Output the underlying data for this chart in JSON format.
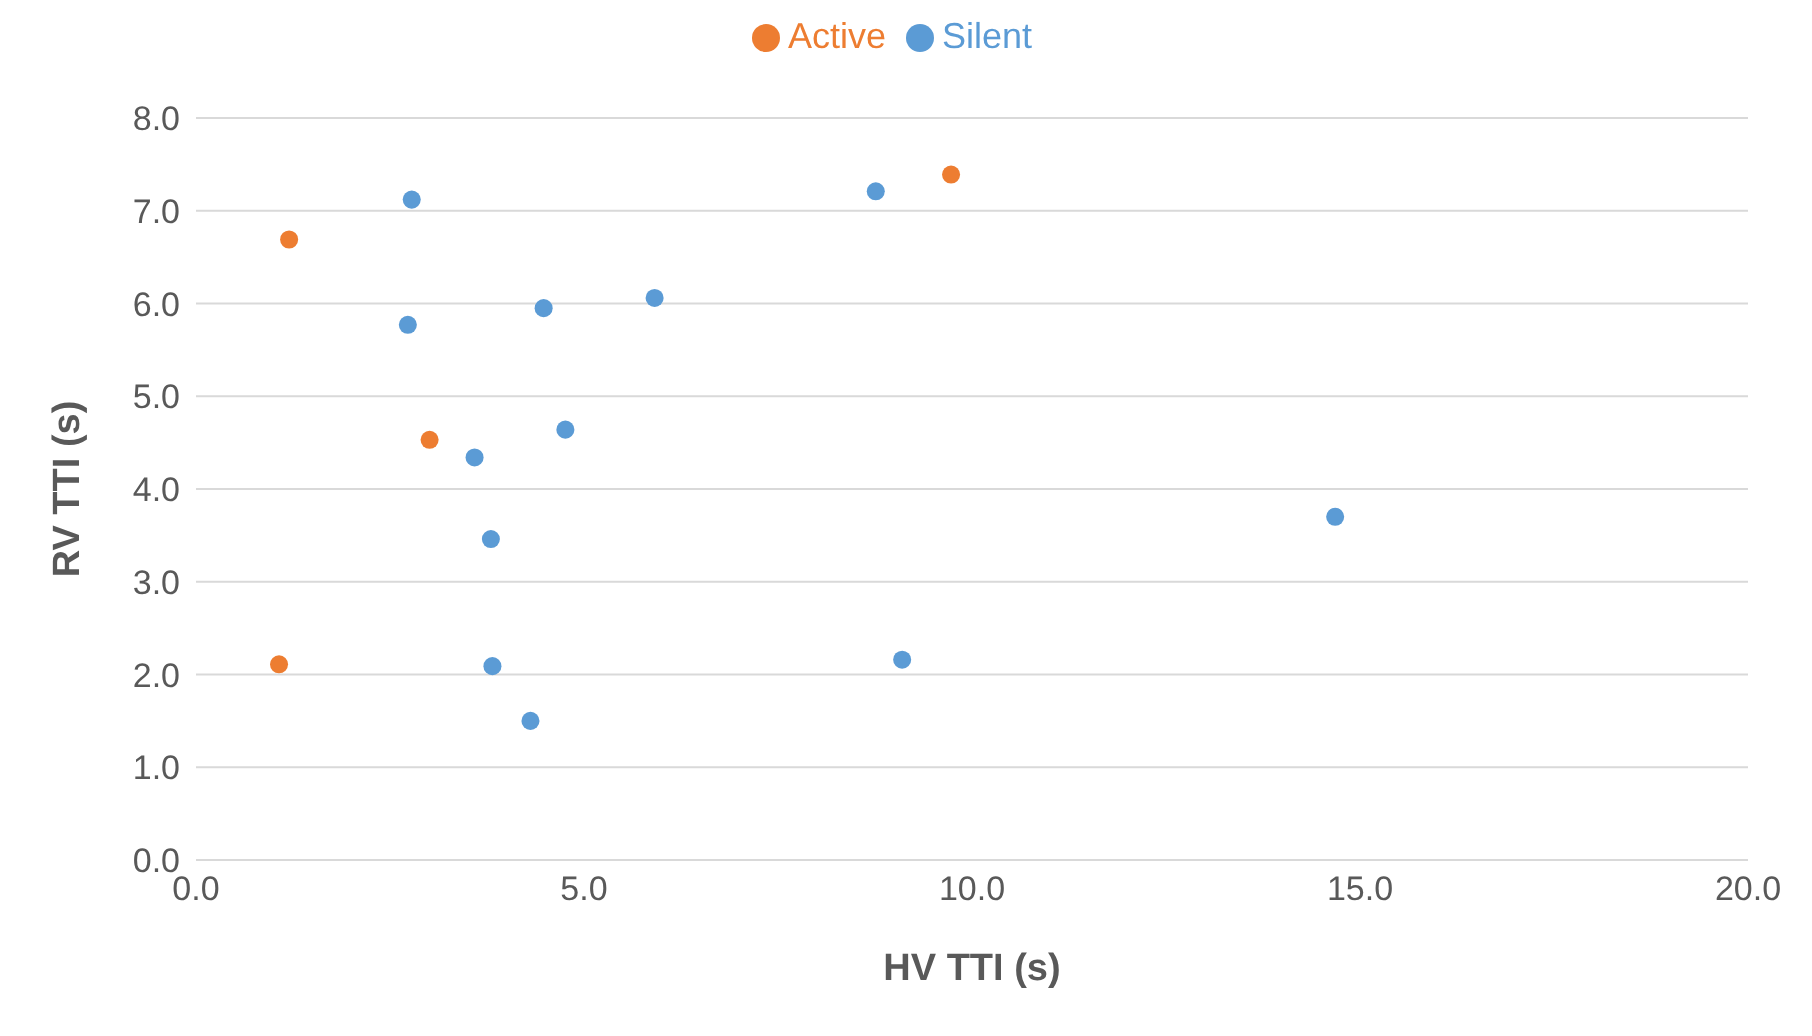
{
  "chart_data": {
    "type": "scatter",
    "xlabel": "HV TTI (s)",
    "ylabel": "RV TTI (s)",
    "series": [
      {
        "name": "Silent",
        "color": "#5b9bd5",
        "x": [
          2.78,
          8.76,
          2.73,
          4.48,
          5.91,
          4.76,
          3.59,
          3.8,
          14.68,
          3.82,
          9.1,
          4.31
        ],
        "values": [
          7.12,
          7.21,
          5.77,
          5.95,
          6.06,
          4.64,
          4.34,
          3.46,
          3.7,
          2.09,
          2.16,
          1.5
        ]
      },
      {
        "name": "Active",
        "color": "#ed7d31",
        "x": [
          1.2,
          9.73,
          3.01,
          1.07
        ],
        "values": [
          6.69,
          7.39,
          4.53,
          2.11
        ]
      }
    ],
    "xlim": [
      0,
      20
    ],
    "xticks": [
      {
        "value": 0,
        "label": "0.0"
      },
      {
        "value": 5,
        "label": "5.0"
      },
      {
        "value": 10,
        "label": "10.0"
      },
      {
        "value": 15,
        "label": "15.0"
      },
      {
        "value": 20,
        "label": "20.0"
      }
    ],
    "ylim": [
      0,
      8
    ],
    "yticks": [
      {
        "value": 0,
        "label": "0.0"
      },
      {
        "value": 1,
        "label": "1.0"
      },
      {
        "value": 2,
        "label": "2.0"
      },
      {
        "value": 3,
        "label": "3.0"
      },
      {
        "value": 4,
        "label": "4.0"
      },
      {
        "value": 5,
        "label": "5.0"
      },
      {
        "value": 6,
        "label": "6.0"
      },
      {
        "value": 7,
        "label": "7.0"
      },
      {
        "value": 8,
        "label": "8.0"
      }
    ],
    "grid": "y",
    "legend": "top",
    "marker": "circle"
  }
}
